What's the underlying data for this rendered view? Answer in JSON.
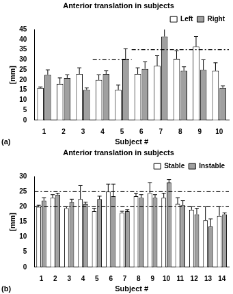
{
  "chart_data": [
    {
      "type": "bar",
      "title": "Anterior translation in subjects",
      "panel": "(a)",
      "x_label": "Subject #",
      "y_label": "[mm]",
      "categories": [
        "1",
        "2",
        "3",
        "4",
        "5",
        "6",
        "7",
        "8",
        "9",
        "10"
      ],
      "series": [
        {
          "name": "Left",
          "color": "#ffffff",
          "values": [
            16,
            18,
            23,
            20,
            15,
            23,
            27,
            30.5,
            36.5,
            24.5
          ],
          "errors": [
            0.5,
            3,
            3,
            2.5,
            2.5,
            3,
            5,
            4,
            5,
            4
          ]
        },
        {
          "name": "Right",
          "color": "#a0a0a0",
          "values": [
            22.5,
            21,
            15,
            23,
            30.5,
            25.5,
            41.5,
            24.5,
            25,
            16
          ],
          "errors": [
            2.5,
            1.5,
            1,
            1.5,
            5,
            3.5,
            5,
            2,
            5,
            1
          ]
        }
      ],
      "reference_lines": [
        {
          "value": 30,
          "from": "4",
          "to": "5"
        },
        {
          "value": 35,
          "from": "6",
          "to": "10"
        }
      ],
      "ylim": [
        0,
        45
      ],
      "yticks": [
        0,
        5,
        10,
        15,
        20,
        25,
        30,
        35,
        40,
        45
      ],
      "grid": false,
      "legend": "top-right"
    },
    {
      "type": "bar",
      "title": "Anterior translation in subjects",
      "panel": "(b)",
      "x_label": "Subject #",
      "y_label": "[mm]",
      "categories": [
        "1",
        "2",
        "3",
        "4",
        "5",
        "6",
        "7",
        "8",
        "9",
        "10",
        "11",
        "12",
        "13",
        "14"
      ],
      "series": [
        {
          "name": "Stable",
          "color": "#ffffff",
          "values": [
            20,
            23,
            19.5,
            22.5,
            18.5,
            25,
            18,
            23.5,
            24.5,
            23,
            21,
            19,
            15.5,
            17
          ],
          "errors": [
            0.5,
            1,
            0.5,
            4.5,
            1,
            2.5,
            0.5,
            1,
            3.5,
            1.5,
            2,
            1,
            4.5,
            3
          ]
        },
        {
          "name": "Instable",
          "color": "#a0a0a0",
          "values": [
            22,
            24,
            21.5,
            21,
            22.5,
            23.5,
            18.5,
            23,
            23,
            28,
            20.5,
            17.5,
            13.5,
            17.5
          ],
          "errors": [
            1,
            0.5,
            1,
            0.5,
            1,
            4,
            0.5,
            1,
            1,
            1,
            1.5,
            2,
            2.5,
            0.5
          ]
        }
      ],
      "reference_lines": [
        {
          "value": 25,
          "from": "1",
          "to": "14"
        },
        {
          "value": 20,
          "from": "1",
          "to": "14"
        }
      ],
      "ylim": [
        0,
        30
      ],
      "yticks": [
        0,
        5,
        10,
        15,
        20,
        25,
        30
      ],
      "grid": false,
      "legend": "top-right"
    }
  ]
}
